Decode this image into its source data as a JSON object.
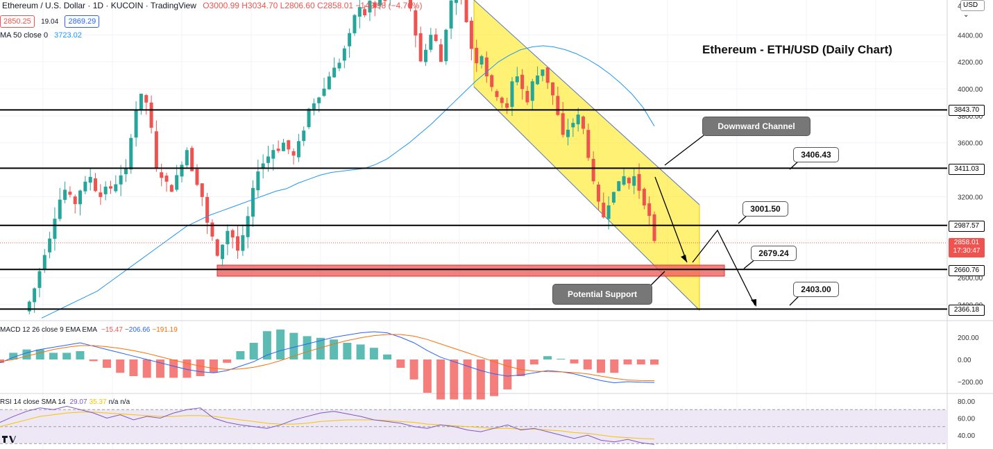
{
  "header": {
    "symbol": "Ethereum / U.S. Dollar · 1D · KUCOIN · TradingView",
    "ohlc": "O3000.99 H3034.70 L2806.60 C2858.01 −142.98 (−4.76%)",
    "bid": "2850.25",
    "spread": "19.04",
    "ask": "2869.29",
    "ma_label": "MA 50 close 0",
    "ma_value": "3723.02",
    "currency": "USD"
  },
  "title": "Ethereum - ETH/USD (Daily Chart)",
  "annotations": {
    "downward_channel": "Downward Channel",
    "potential_support": "Potential Support",
    "level_3406": "3406.43",
    "level_3001": "3001.50",
    "level_2679": "2679.24",
    "level_2403": "2403.00"
  },
  "price_scale": {
    "ticks": [
      "4400.00",
      "4200.00",
      "4000.00",
      "3800.00",
      "3600.00",
      "3200.00",
      "2600.00",
      "2400.00"
    ],
    "tick_values": [
      4400,
      4200,
      4000,
      3800,
      3600,
      3200,
      2600,
      2400
    ],
    "top_label": "4",
    "level_labels": [
      {
        "text": "3843.70",
        "value": 3843.7
      },
      {
        "text": "3411.03",
        "value": 3411.03
      },
      {
        "text": "2987.57",
        "value": 2987.57
      },
      {
        "text": "2660.76",
        "value": 2660.76
      },
      {
        "text": "2366.18",
        "value": 2366.18
      }
    ],
    "last_price": "2858.01",
    "countdown": "17:30:47"
  },
  "macd": {
    "label": "MACD 12 26 close 9 EMA EMA",
    "v1": "−15.47",
    "v2": "−206.66",
    "v3": "−191.19",
    "ticks": [
      "200.00",
      "0.00",
      "−200.00"
    ],
    "tick_values": [
      200,
      0,
      -200
    ]
  },
  "rsi": {
    "label": "RSI 14 close SMA 14",
    "v1": "29.07",
    "v2": "35.37",
    "v3": "n/a n/a",
    "ticks": [
      "80.00",
      "60.00",
      "40.00"
    ],
    "tick_values": [
      80,
      60,
      40
    ]
  },
  "colors": {
    "up": "#26a69a",
    "down": "#ef5350",
    "ma": "#2196f3",
    "channel": "#ffe600",
    "support_zone": "#f06060",
    "rsi_band": "#ede7f6",
    "rsi_line": "#7e57c2"
  },
  "chart_data": {
    "type": "candlestick",
    "title": "Ethereum - ETH/USD (Daily Chart)",
    "ylim": [
      2330,
      4650
    ],
    "horizontal_levels": [
      3843.7,
      3411.03,
      2987.57,
      2660.76,
      2366.18
    ],
    "close_path": [
      2350,
      2420,
      2520,
      2650,
      2780,
      2900,
      3050,
      3180,
      3250,
      3200,
      3150,
      3250,
      3300,
      3350,
      3250,
      3200,
      3280,
      3250,
      3300,
      3350,
      3400,
      3650,
      3850,
      3950,
      3900,
      3700,
      3400,
      3350,
      3300,
      3250,
      3350,
      3450,
      3550,
      3400,
      3300,
      3200,
      3000,
      2900,
      2750,
      2850,
      2950,
      2900,
      2800,
      2900,
      3050,
      3250,
      3400,
      3450,
      3500,
      3550,
      3550,
      3600,
      3550,
      3500,
      3600,
      3700,
      3850,
      3900,
      3950,
      4000,
      4100,
      4150,
      4200,
      4300,
      4400,
      4550,
      4600,
      4550,
      4650,
      4600,
      4700,
      4650,
      4700,
      4750,
      4800,
      4700,
      4600,
      4400,
      4200,
      4300,
      4400,
      4350,
      4200,
      4450,
      4650,
      4750,
      4700,
      4500,
      4300,
      4200,
      4250,
      4100,
      4000,
      3950,
      3900,
      3850,
      4050,
      4100,
      4000,
      3900,
      4050,
      4100,
      4150,
      4050,
      3950,
      3800,
      3650,
      3700,
      3750,
      3800,
      3700,
      3500,
      3300,
      3150,
      3050,
      3150,
      3250,
      3300,
      3350,
      3300,
      3350,
      3250,
      3150,
      3050,
      2860
    ],
    "ma50_path": [
      2300,
      2340,
      2380,
      2420,
      2460,
      2500,
      2560,
      2620,
      2680,
      2740,
      2800,
      2860,
      2920,
      2980,
      3020,
      3060,
      3090,
      3120,
      3150,
      3180,
      3210,
      3240,
      3260,
      3300,
      3330,
      3360,
      3380,
      3390,
      3400,
      3410,
      3440,
      3480,
      3540,
      3600,
      3670,
      3740,
      3820,
      3900,
      3980,
      4060,
      4130,
      4200,
      4250,
      4290,
      4310,
      4320,
      4310,
      4290,
      4260,
      4220,
      4170,
      4110,
      4040,
      3960,
      3860,
      3723
    ],
    "macd_line": [
      -30,
      20,
      60,
      90,
      110,
      130,
      150,
      120,
      90,
      60,
      30,
      0,
      -30,
      -60,
      -90,
      -110,
      -120,
      -100,
      -60,
      -20,
      40,
      80,
      110,
      140,
      170,
      200,
      220,
      240,
      250,
      240,
      200,
      150,
      80,
      20,
      -20,
      -60,
      -100,
      -130,
      -150,
      -140,
      -120,
      -100,
      -110,
      -130,
      -160,
      -190,
      -210,
      -200,
      -205,
      -206.66
    ],
    "macd_signal": [
      -20,
      0,
      30,
      60,
      90,
      110,
      125,
      125,
      115,
      100,
      80,
      55,
      25,
      -5,
      -35,
      -60,
      -80,
      -90,
      -85,
      -70,
      -45,
      -10,
      30,
      70,
      105,
      140,
      170,
      195,
      215,
      225,
      225,
      210,
      180,
      140,
      100,
      60,
      20,
      -20,
      -60,
      -90,
      -105,
      -110,
      -112,
      -118,
      -130,
      -150,
      -170,
      -185,
      -190,
      -191.19
    ],
    "rsi_line": [
      55,
      62,
      68,
      72,
      70,
      74,
      70,
      66,
      60,
      64,
      58,
      62,
      60,
      66,
      70,
      72,
      60,
      55,
      52,
      50,
      48,
      52,
      58,
      62,
      66,
      68,
      65,
      62,
      58,
      56,
      54,
      50,
      48,
      52,
      50,
      46,
      44,
      48,
      52,
      46,
      48,
      44,
      40,
      36,
      40,
      34,
      32,
      35,
      31,
      29.07
    ],
    "rsi_sma": [
      50,
      54,
      58,
      62,
      64,
      66,
      67,
      67,
      66,
      65,
      64,
      63,
      62,
      62,
      63,
      63,
      62,
      60,
      58,
      56,
      54,
      53,
      53,
      54,
      56,
      57,
      58,
      58,
      58,
      57,
      56,
      55,
      53,
      52,
      51,
      50,
      49,
      48,
      48,
      47,
      47,
      46,
      45,
      43,
      42,
      40,
      38,
      37,
      36,
      35.37
    ]
  }
}
